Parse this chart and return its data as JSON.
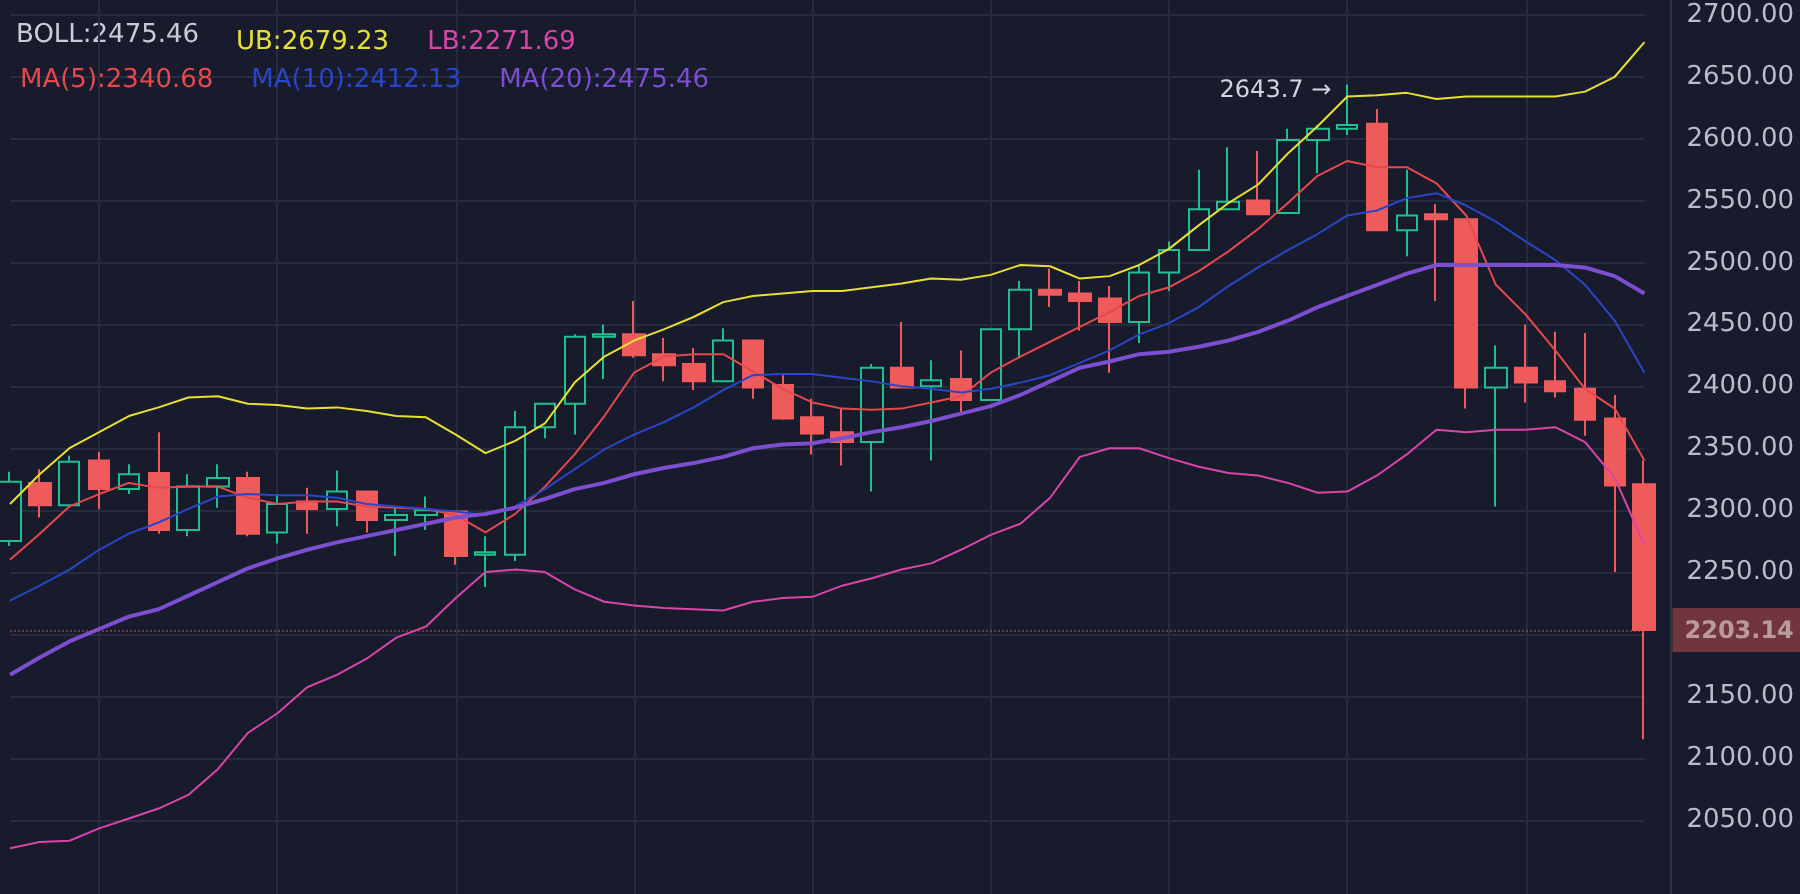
{
  "chart_data": {
    "type": "candlestick",
    "categories": [
      null,
      null,
      null,
      null,
      null,
      null,
      null,
      null,
      null,
      null,
      null,
      null,
      null,
      null,
      null,
      null,
      null,
      null,
      null,
      null,
      null,
      null,
      null,
      null,
      null,
      null,
      null,
      null,
      null,
      null,
      null,
      null,
      null,
      null,
      null,
      null,
      null,
      null,
      null,
      null,
      null,
      null,
      null,
      null,
      null,
      null,
      null,
      null,
      null,
      null,
      null,
      null,
      null,
      null,
      null,
      null
    ],
    "ohlc": [
      [
        2275,
        2331,
        2271,
        2323
      ],
      [
        2322,
        2333,
        2294,
        2304
      ],
      [
        2304,
        2344,
        2304,
        2339
      ],
      [
        2340,
        2347,
        2301,
        2317
      ],
      [
        2317,
        2337,
        2313,
        2329
      ],
      [
        2330,
        2363,
        2281,
        2284
      ],
      [
        2284,
        2329,
        2279,
        2319
      ],
      [
        2319,
        2337,
        2302,
        2326
      ],
      [
        2326,
        2331,
        2279,
        2281
      ],
      [
        2282,
        2313,
        2273,
        2305
      ],
      [
        2307,
        2318,
        2281,
        2301
      ],
      [
        2301,
        2332,
        2287,
        2315
      ],
      [
        2315,
        2315,
        2282,
        2292
      ],
      [
        2292,
        2302,
        2263,
        2296
      ],
      [
        2296,
        2311,
        2284,
        2300
      ],
      [
        2299,
        2299,
        2256,
        2263
      ],
      [
        2264,
        2279,
        2238,
        2266
      ],
      [
        2264,
        2380,
        2259,
        2367
      ],
      [
        2367,
        2386,
        2358,
        2386
      ],
      [
        2386,
        2442,
        2361,
        2440
      ],
      [
        2440,
        2450,
        2406,
        2442
      ],
      [
        2442,
        2469,
        2423,
        2425
      ],
      [
        2426,
        2439,
        2404,
        2417
      ],
      [
        2418,
        2431,
        2397,
        2404
      ],
      [
        2404,
        2447,
        2404,
        2437
      ],
      [
        2437,
        2437,
        2390,
        2399
      ],
      [
        2401,
        2409,
        2373,
        2374
      ],
      [
        2375,
        2390,
        2345,
        2362
      ],
      [
        2363,
        2382,
        2336,
        2355
      ],
      [
        2355,
        2418,
        2315,
        2415
      ],
      [
        2415,
        2452,
        2399,
        2399
      ],
      [
        2400,
        2421,
        2340,
        2405
      ],
      [
        2406,
        2429,
        2379,
        2389
      ],
      [
        2389,
        2447,
        2389,
        2446
      ],
      [
        2446,
        2485,
        2424,
        2478
      ],
      [
        2478,
        2495,
        2464,
        2474
      ],
      [
        2475,
        2485,
        2445,
        2469
      ],
      [
        2471,
        2481,
        2411,
        2452
      ],
      [
        2452,
        2498,
        2435,
        2492
      ],
      [
        2492,
        2517,
        2477,
        2510
      ],
      [
        2510,
        2575,
        2510,
        2543
      ],
      [
        2543,
        2593,
        2543,
        2549
      ],
      [
        2550,
        2590,
        2539,
        2539
      ],
      [
        2540,
        2608,
        2540,
        2599
      ],
      [
        2599,
        2611,
        2572,
        2608
      ],
      [
        2608,
        2643.7,
        2603,
        2611
      ],
      [
        2612,
        2624,
        2526,
        2526
      ],
      [
        2526,
        2575,
        2505,
        2538
      ],
      [
        2539,
        2547,
        2469,
        2535
      ],
      [
        2535,
        2535,
        2382,
        2399
      ],
      [
        2399,
        2433,
        2303,
        2415
      ],
      [
        2415,
        2450,
        2387,
        2403
      ],
      [
        2404,
        2444,
        2391,
        2396
      ],
      [
        2398,
        2443,
        2360,
        2373
      ],
      [
        2374,
        2393,
        2250,
        2320
      ],
      [
        2321,
        2340,
        2115,
        2203.14
      ]
    ],
    "colors": [
      "#1fbf8f",
      "#ef5b5b",
      "#1fbf8f",
      "#ef5b5b",
      "#1fbf8f",
      "#ef5b5b",
      "#1fbf8f",
      "#1fbf8f",
      "#ef5b5b",
      "#1fbf8f",
      "#ef5b5b",
      "#1fbf8f",
      "#ef5b5b",
      "#1fbf8f",
      "#1fbf8f",
      "#ef5b5b",
      "#1fbf8f",
      "#1fbf8f",
      "#1fbf8f",
      "#1fbf8f",
      "#1fbf8f",
      "#ef5b5b",
      "#ef5b5b",
      "#ef5b5b",
      "#1fbf8f",
      "#ef5b5b",
      "#ef5b5b",
      "#ef5b5b",
      "#ef5b5b",
      "#1fbf8f",
      "#ef5b5b",
      "#1fbf8f",
      "#ef5b5b",
      "#1fbf8f",
      "#1fbf8f",
      "#ef5b5b",
      "#ef5b5b",
      "#ef5b5b",
      "#1fbf8f",
      "#1fbf8f",
      "#1fbf8f",
      "#1fbf8f",
      "#ef5b5b",
      "#1fbf8f",
      "#1fbf8f",
      "#1fbf8f",
      "#ef5b5b",
      "#1fbf8f",
      "#ef5b5b",
      "#ef5b5b",
      "#1fbf8f",
      "#ef5b5b",
      "#ef5b5b",
      "#ef5b5b",
      "#ef5b5b",
      "#ef5b5b"
    ],
    "series": [
      {
        "type": "line",
        "name": "UB:2679.23",
        "color": "#e8e030",
        "values": [
          2305,
          2329,
          2350,
          2363,
          2376,
          2383,
          2391,
          2392,
          2386,
          2385,
          2382,
          2383,
          2380,
          2376,
          2375,
          2361,
          2346,
          2356,
          2370,
          2403,
          2424,
          2437,
          2446,
          2456,
          2468,
          2473,
          2475,
          2477,
          2477,
          2480,
          2483,
          2487,
          2486,
          2490,
          2498,
          2497,
          2487,
          2489,
          2498,
          2511,
          2530,
          2548,
          2563,
          2588,
          2610,
          2634,
          2635,
          2637,
          2632,
          2634,
          2634,
          2634,
          2634,
          2638,
          2650,
          2678
        ]
      },
      {
        "type": "line",
        "name": "LB:2271.69",
        "color": "#d945a8",
        "values": [
          2027,
          2032,
          2033,
          2043,
          2051,
          2059,
          2070,
          2091,
          2120,
          2136,
          2157,
          2167,
          2180,
          2197,
          2206,
          2229,
          2250,
          2252,
          2250,
          2236,
          2226,
          2223,
          2221,
          2220,
          2219,
          2226,
          2229,
          2230,
          2239,
          2245,
          2252,
          2257,
          2268,
          2280,
          2289,
          2310,
          2343,
          2350,
          2350,
          2342,
          2335,
          2330,
          2328,
          2322,
          2314,
          2315,
          2328,
          2345,
          2365,
          2363,
          2365,
          2365,
          2367,
          2355,
          2326,
          2272
        ]
      },
      {
        "type": "line",
        "name": "MA(5):2340.68",
        "color": "#e5484d",
        "values": [
          2260,
          2281,
          2303,
          2313,
          2322,
          2318,
          2319,
          2319,
          2310,
          2305,
          2307,
          2307,
          2303,
          2302,
          2301,
          2296,
          2282,
          2297,
          2319,
          2345,
          2376,
          2411,
          2424,
          2426,
          2426,
          2412,
          2398,
          2387,
          2382,
          2381,
          2382,
          2387,
          2392,
          2411,
          2424,
          2436,
          2448,
          2460,
          2473,
          2480,
          2493,
          2509,
          2527,
          2548,
          2570,
          2582,
          2577,
          2577,
          2564,
          2538,
          2482,
          2458,
          2429,
          2398,
          2382,
          2340
        ]
      },
      {
        "type": "line",
        "name": "MA(10):2412.13",
        "color": "#2a46c8",
        "values": [
          2227,
          2239,
          2252,
          2268,
          2281,
          2290,
          2301,
          2311,
          2313,
          2312,
          2312,
          2310,
          2305,
          2303,
          2301,
          2299,
          2296,
          2303,
          2317,
          2333,
          2349,
          2361,
          2371,
          2383,
          2397,
          2409,
          2410,
          2410,
          2407,
          2404,
          2400,
          2398,
          2395,
          2398,
          2403,
          2409,
          2419,
          2429,
          2442,
          2451,
          2464,
          2481,
          2496,
          2510,
          2523,
          2538,
          2542,
          2552,
          2556,
          2546,
          2533,
          2517,
          2502,
          2482,
          2453,
          2411
        ]
      },
      {
        "type": "line",
        "name": "MA(20):2475.46",
        "color": "#7b4fd0",
        "values": [
          2167,
          2181,
          2194,
          2204,
          2214,
          2220,
          2231,
          2242,
          2253,
          2261,
          2268,
          2274,
          2279,
          2284,
          2289,
          2294,
          2297,
          2302,
          2309,
          2317,
          2322,
          2329,
          2334,
          2338,
          2343,
          2350,
          2353,
          2354,
          2358,
          2363,
          2367,
          2372,
          2378,
          2384,
          2393,
          2404,
          2415,
          2420,
          2426,
          2428,
          2432,
          2437,
          2444,
          2453,
          2464,
          2473,
          2482,
          2491,
          2498,
          2498,
          2498,
          2498,
          2498,
          2496,
          2489,
          2475
        ]
      }
    ],
    "annotations": [
      "BOLL:2475.46",
      "2643.7 →"
    ],
    "ref_lines": [
      {
        "axis": "y",
        "value": 2203.14,
        "label": "2203.14",
        "color": "#c94f4f"
      }
    ],
    "ylim": [
      1990,
      2712
    ],
    "yticks": [
      {
        "value": 2050,
        "label": "2050.00"
      },
      {
        "value": 2100,
        "label": "2100.00"
      },
      {
        "value": 2150,
        "label": "2150.00"
      },
      {
        "value": 2200,
        "label": null
      },
      {
        "value": 2250,
        "label": "2250.00"
      },
      {
        "value": 2300,
        "label": "2300.00"
      },
      {
        "value": 2350,
        "label": "2350.00"
      },
      {
        "value": 2400,
        "label": "2400.00"
      },
      {
        "value": 2450,
        "label": "2450.00"
      },
      {
        "value": 2500,
        "label": "2500.00"
      },
      {
        "value": 2550,
        "label": "2550.00"
      },
      {
        "value": 2600,
        "label": "2600.00"
      },
      {
        "value": 2650,
        "label": "2650.00"
      },
      {
        "value": 2700,
        "label": "2700.00"
      }
    ],
    "grid": true,
    "legend": "top left",
    "marker": "none",
    "line_style": "solid"
  }
}
